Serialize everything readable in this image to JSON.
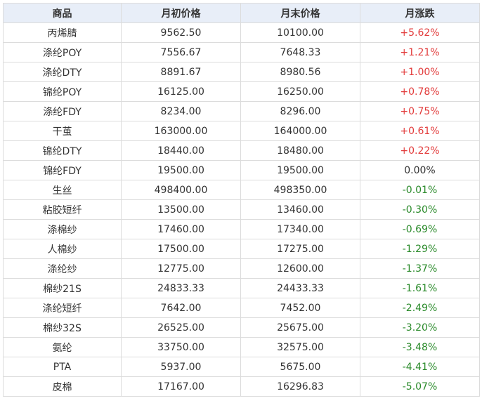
{
  "table": {
    "headers": [
      "商品",
      "月初价格",
      "月末价格",
      "月涨跌"
    ],
    "rows": [
      {
        "name": "丙烯腈",
        "start": "9562.50",
        "end": "10100.00",
        "change": "+5.62%",
        "dir": "up"
      },
      {
        "name": "涤纶POY",
        "start": "7556.67",
        "end": "7648.33",
        "change": "+1.21%",
        "dir": "up"
      },
      {
        "name": "涤纶DTY",
        "start": "8891.67",
        "end": "8980.56",
        "change": "+1.00%",
        "dir": "up"
      },
      {
        "name": "锦纶POY",
        "start": "16125.00",
        "end": "16250.00",
        "change": "+0.78%",
        "dir": "up"
      },
      {
        "name": "涤纶FDY",
        "start": "8234.00",
        "end": "8296.00",
        "change": "+0.75%",
        "dir": "up"
      },
      {
        "name": "干茧",
        "start": "163000.00",
        "end": "164000.00",
        "change": "+0.61%",
        "dir": "up"
      },
      {
        "name": "锦纶DTY",
        "start": "18440.00",
        "end": "18480.00",
        "change": "+0.22%",
        "dir": "up"
      },
      {
        "name": "锦纶FDY",
        "start": "19500.00",
        "end": "19500.00",
        "change": "0.00%",
        "dir": "flat"
      },
      {
        "name": "生丝",
        "start": "498400.00",
        "end": "498350.00",
        "change": "-0.01%",
        "dir": "down"
      },
      {
        "name": "粘胶短纤",
        "start": "13500.00",
        "end": "13460.00",
        "change": "-0.30%",
        "dir": "down"
      },
      {
        "name": "涤棉纱",
        "start": "17460.00",
        "end": "17340.00",
        "change": "-0.69%",
        "dir": "down"
      },
      {
        "name": "人棉纱",
        "start": "17500.00",
        "end": "17275.00",
        "change": "-1.29%",
        "dir": "down"
      },
      {
        "name": "涤纶纱",
        "start": "12775.00",
        "end": "12600.00",
        "change": "-1.37%",
        "dir": "down"
      },
      {
        "name": "棉纱21S",
        "start": "24833.33",
        "end": "24433.33",
        "change": "-1.61%",
        "dir": "down"
      },
      {
        "name": "涤纶短纤",
        "start": "7642.00",
        "end": "7452.00",
        "change": "-2.49%",
        "dir": "down"
      },
      {
        "name": "棉纱32S",
        "start": "26525.00",
        "end": "25675.00",
        "change": "-3.20%",
        "dir": "down"
      },
      {
        "name": "氨纶",
        "start": "33750.00",
        "end": "32575.00",
        "change": "-3.48%",
        "dir": "down"
      },
      {
        "name": "PTA",
        "start": "5937.00",
        "end": "5675.00",
        "change": "-4.41%",
        "dir": "down"
      },
      {
        "name": "皮棉",
        "start": "17167.00",
        "end": "16296.83",
        "change": "-5.07%",
        "dir": "down"
      }
    ]
  },
  "colors": {
    "up": "#e23a3a",
    "down": "#2a8a2a",
    "flat": "#333333",
    "header_bg": "#e8eef8",
    "border": "#dcdcdc"
  }
}
